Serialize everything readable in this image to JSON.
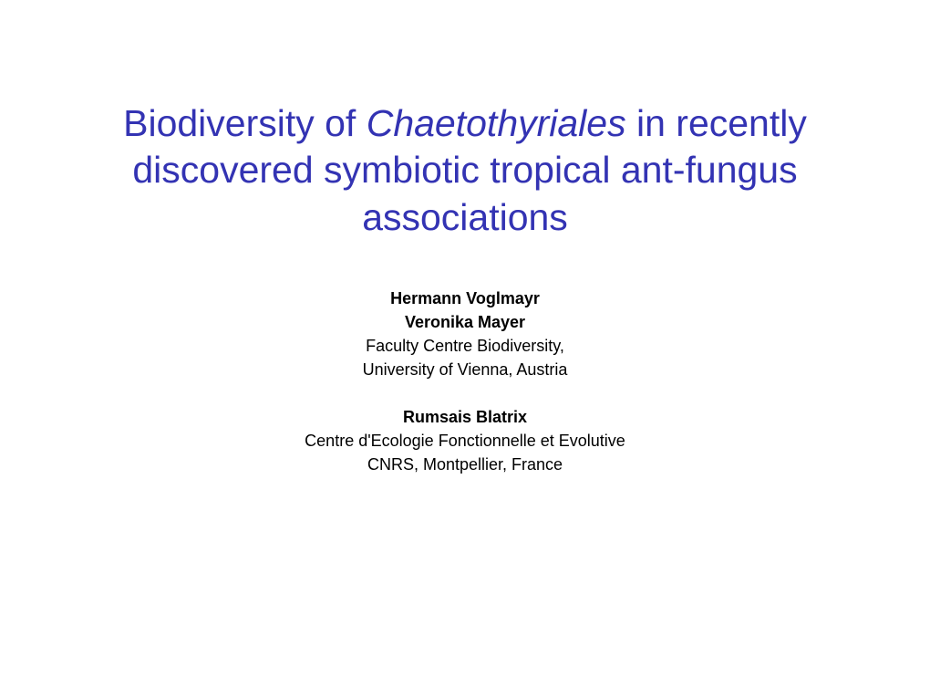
{
  "slide": {
    "title_part1": "Biodiversity of ",
    "title_italic": "Chaetothyriales",
    "title_part2": " in recently discovered symbiotic tropical ant-fungus associations",
    "title_color": "#3333b3",
    "title_fontsize": 41,
    "background_color": "#ffffff",
    "author_fontsize": 18,
    "author_color": "#000000",
    "groups": [
      {
        "authors": [
          "Hermann Voglmayr",
          "Veronika Mayer"
        ],
        "affiliations": [
          "Faculty Centre Biodiversity,",
          "University of Vienna, Austria"
        ]
      },
      {
        "authors": [
          "Rumsais Blatrix"
        ],
        "affiliations": [
          "Centre d'Ecologie Fonctionnelle et Evolutive",
          "CNRS, Montpellier, France"
        ]
      }
    ]
  }
}
